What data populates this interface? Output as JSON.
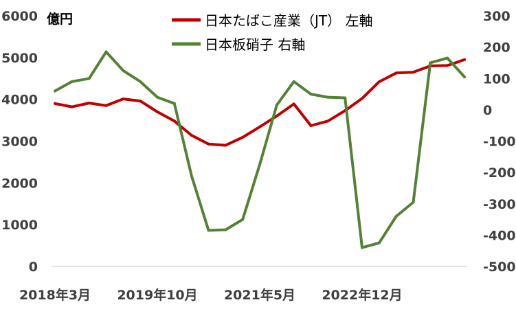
{
  "chart_data": {
    "type": "line",
    "title": "",
    "left_unit": "億円",
    "x_tick_labels": [
      "2018年3月",
      "2019年10月",
      "2021年5月",
      "2022年12月"
    ],
    "x_tick_positions": [
      0,
      6,
      12,
      18
    ],
    "left_axis": {
      "min": 0,
      "max": 6000,
      "step": 1000,
      "ticks": [
        "0",
        "1000",
        "2000",
        "3000",
        "4000",
        "5000",
        "6000"
      ]
    },
    "right_axis": {
      "min": -500,
      "max": 300,
      "step": 100,
      "ticks": [
        "-500",
        "-400",
        "-300",
        "-200",
        "-100",
        "0",
        "100",
        "200",
        "300"
      ]
    },
    "legend_position": "top",
    "grid": false,
    "series": [
      {
        "name": "日本たばこ産業（JT） 左軸",
        "axis": "left",
        "color": "#c00000",
        "values": [
          3900,
          3820,
          3910,
          3850,
          4010,
          3960,
          3700,
          3480,
          3140,
          2930,
          2900,
          3090,
          3340,
          3600,
          3890,
          3370,
          3480,
          3730,
          4020,
          4420,
          4630,
          4650,
          4800,
          4810,
          4950
        ]
      },
      {
        "name": "日本板硝子 右軸",
        "axis": "right",
        "color": "#548235",
        "values": [
          60,
          90,
          100,
          185,
          125,
          90,
          40,
          20,
          -210,
          -385,
          -383,
          -350,
          -175,
          15,
          90,
          50,
          40,
          38,
          -440,
          -425,
          -340,
          -295,
          150,
          165,
          105
        ]
      }
    ]
  }
}
